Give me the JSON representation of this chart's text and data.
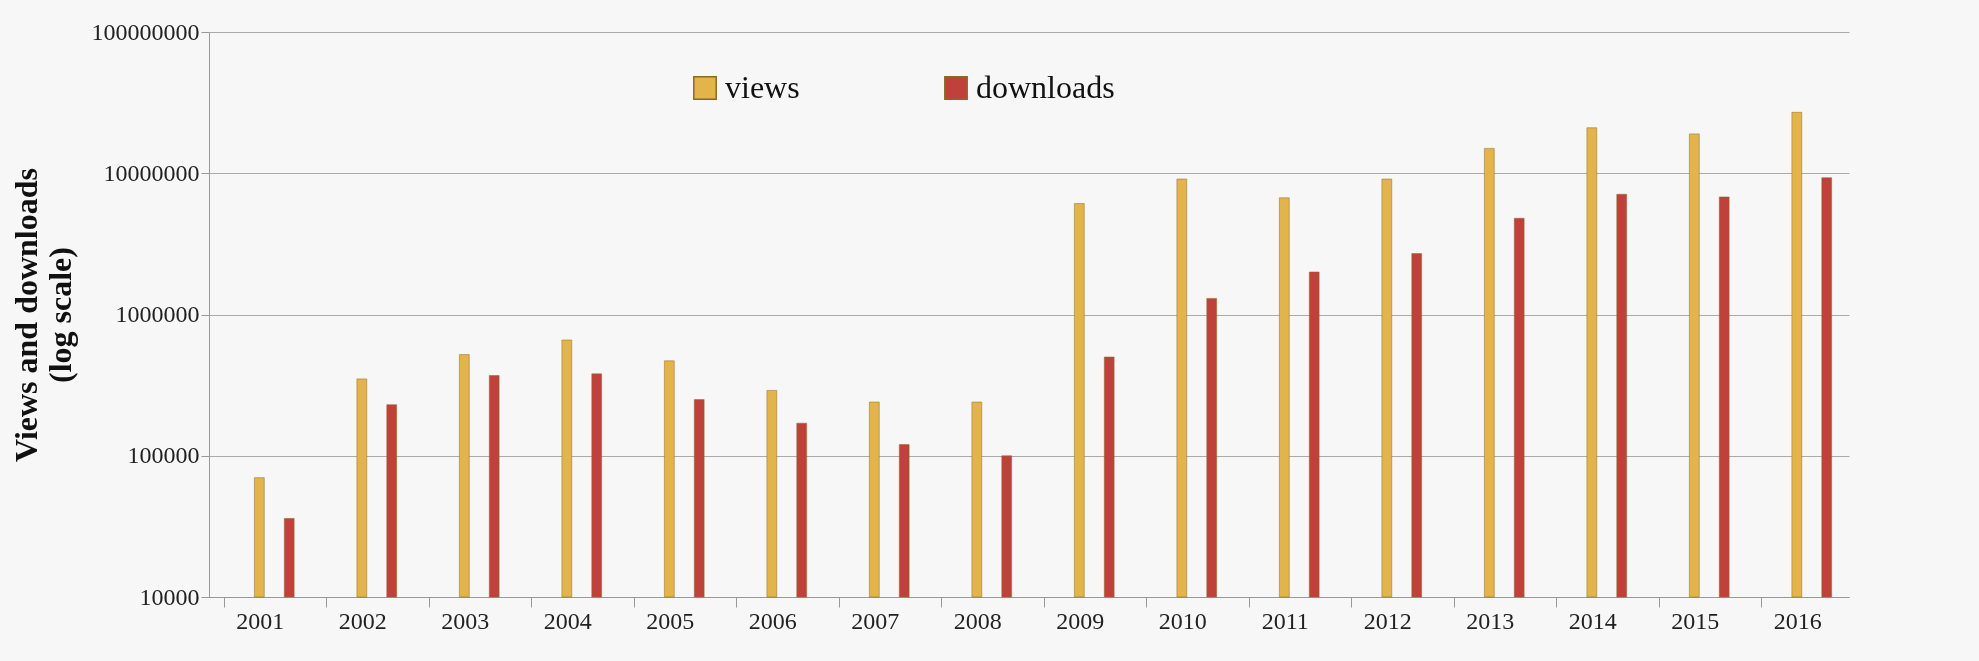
{
  "chart_data": {
    "type": "bar",
    "ylabel": "Views and downloads (log scale)",
    "categories": [
      "2001",
      "2002",
      "2003",
      "2004",
      "2005",
      "2006",
      "2007",
      "2008",
      "2009",
      "2010",
      "2011",
      "2012",
      "2013",
      "2014",
      "2015",
      "2016"
    ],
    "series": [
      {
        "name": "views",
        "color": "#e3b44c",
        "values": [
          70000,
          350000,
          520000,
          660000,
          470000,
          290000,
          240000,
          240000,
          6100000,
          9100000,
          6700000,
          9100000,
          15000000,
          21000000,
          19000000,
          27000000
        ]
      },
      {
        "name": "downloads",
        "color": "#c0413c",
        "values": [
          36000,
          230000,
          370000,
          380000,
          250000,
          170000,
          120000,
          100000,
          500000,
          1300000,
          2000000,
          2700000,
          4800000,
          7100000,
          6800000,
          9300000
        ]
      }
    ],
    "log": true,
    "ylim": [
      10000,
      100000000
    ],
    "yticks": [
      10000,
      100000,
      1000000,
      10000000,
      100000000
    ],
    "grid": "y",
    "legend": "top"
  }
}
